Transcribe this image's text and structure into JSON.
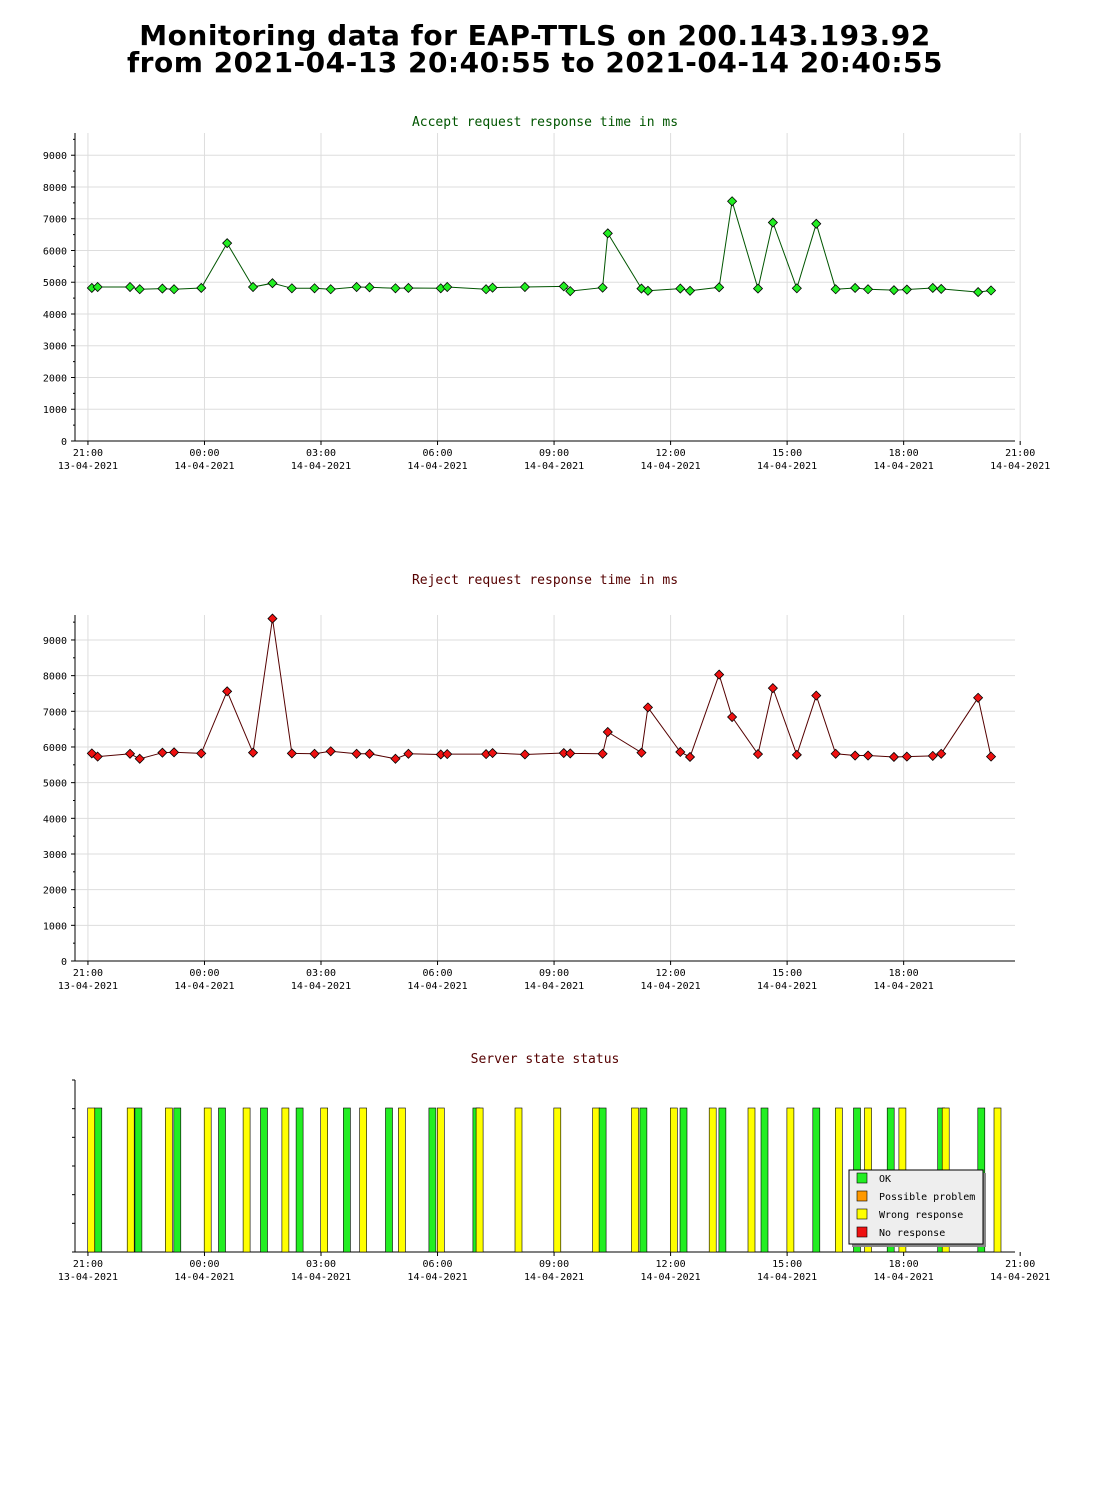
{
  "page": {
    "title_line1": "Monitoring data for EAP-TTLS on 200.143.193.92",
    "title_line2": "from 2021-04-13 20:40:55 to 2021-04-14 20:40:55"
  },
  "chart_data": [
    {
      "type": "line",
      "title": "Accept request response time in ms",
      "title_color": "#005500",
      "marker_color": "#22ee22",
      "line_color": "#005500",
      "xlabel": "",
      "ylabel": "",
      "ylim": [
        0,
        9700
      ],
      "yticks": [
        0,
        1000,
        2000,
        3000,
        4000,
        5000,
        6000,
        7000,
        8000,
        9000
      ],
      "xlim": [
        "2021-04-13 20:40",
        "2021-04-14 20:52"
      ],
      "xticks": [
        {
          "time": "2021-04-13 21:00",
          "label1": "21:00",
          "label2": "13-04-2021"
        },
        {
          "time": "2021-04-14 00:00",
          "label1": "00:00",
          "label2": "14-04-2021"
        },
        {
          "time": "2021-04-14 03:00",
          "label1": "03:00",
          "label2": "14-04-2021"
        },
        {
          "time": "2021-04-14 06:00",
          "label1": "06:00",
          "label2": "14-04-2021"
        },
        {
          "time": "2021-04-14 09:00",
          "label1": "09:00",
          "label2": "14-04-2021"
        },
        {
          "time": "2021-04-14 12:00",
          "label1": "12:00",
          "label2": "14-04-2021"
        },
        {
          "time": "2021-04-14 15:00",
          "label1": "15:00",
          "label2": "14-04-2021"
        },
        {
          "time": "2021-04-14 18:00",
          "label1": "18:00",
          "label2": "14-04-2021"
        },
        {
          "time": "2021-04-14 21:00",
          "label1": "21:00",
          "label2": "14-04-2021"
        }
      ],
      "grid": true,
      "x": [
        "2021-04-13 21:06",
        "2021-04-13 21:15",
        "2021-04-13 22:05",
        "2021-04-13 22:20",
        "2021-04-13 22:55",
        "2021-04-13 23:13",
        "2021-04-13 23:55",
        "2021-04-14 00:35",
        "2021-04-14 01:15",
        "2021-04-14 01:45",
        "2021-04-14 02:15",
        "2021-04-14 02:50",
        "2021-04-14 03:15",
        "2021-04-14 03:55",
        "2021-04-14 04:15",
        "2021-04-14 04:55",
        "2021-04-14 05:15",
        "2021-04-14 06:05",
        "2021-04-14 06:15",
        "2021-04-14 07:15",
        "2021-04-14 07:25",
        "2021-04-14 08:15",
        "2021-04-14 09:15",
        "2021-04-14 09:25",
        "2021-04-14 10:15",
        "2021-04-14 10:23",
        "2021-04-14 11:15",
        "2021-04-14 11:25",
        "2021-04-14 12:15",
        "2021-04-14 12:30",
        "2021-04-14 13:15",
        "2021-04-14 13:35",
        "2021-04-14 14:15",
        "2021-04-14 14:38",
        "2021-04-14 15:15",
        "2021-04-14 15:45",
        "2021-04-14 16:15",
        "2021-04-14 16:45",
        "2021-04-14 17:05",
        "2021-04-14 17:45",
        "2021-04-14 18:05",
        "2021-04-14 18:45",
        "2021-04-14 18:58",
        "2021-04-14 19:55",
        "2021-04-14 20:15"
      ],
      "values": [
        4820,
        4850,
        4850,
        4780,
        4800,
        4780,
        4820,
        6230,
        4850,
        4970,
        4810,
        4810,
        4780,
        4850,
        4840,
        4810,
        4820,
        4810,
        4850,
        4780,
        4830,
        4850,
        4870,
        4720,
        4830,
        6540,
        4800,
        4730,
        4800,
        4730,
        4840,
        7550,
        4800,
        6880,
        4810,
        6840,
        4780,
        4820,
        4780,
        4750,
        4770,
        4820,
        4790,
        4690,
        4740
      ]
    },
    {
      "type": "line",
      "title": "Reject request response time in ms",
      "title_color": "#550000",
      "marker_color": "#ee1111",
      "line_color": "#550000",
      "xlabel": "",
      "ylabel": "",
      "ylim": [
        0,
        9700
      ],
      "yticks": [
        0,
        1000,
        2000,
        3000,
        4000,
        5000,
        6000,
        7000,
        8000,
        9000
      ],
      "xlim": [
        "2021-04-13 20:40",
        "2021-04-14 20:52"
      ],
      "xticks": [
        {
          "time": "2021-04-13 21:00",
          "label1": "21:00",
          "label2": "13-04-2021"
        },
        {
          "time": "2021-04-14 00:00",
          "label1": "00:00",
          "label2": "14-04-2021"
        },
        {
          "time": "2021-04-14 03:00",
          "label1": "03:00",
          "label2": "14-04-2021"
        },
        {
          "time": "2021-04-14 06:00",
          "label1": "06:00",
          "label2": "14-04-2021"
        },
        {
          "time": "2021-04-14 09:00",
          "label1": "09:00",
          "label2": "14-04-2021"
        },
        {
          "time": "2021-04-14 12:00",
          "label1": "12:00",
          "label2": "14-04-2021"
        },
        {
          "time": "2021-04-14 15:00",
          "label1": "15:00",
          "label2": "14-04-2021"
        },
        {
          "time": "2021-04-14 18:00",
          "label1": "18:00",
          "label2": "14-04-2021"
        }
      ],
      "grid": true,
      "x": [
        "2021-04-13 21:06",
        "2021-04-13 21:15",
        "2021-04-13 22:05",
        "2021-04-13 22:20",
        "2021-04-13 22:55",
        "2021-04-13 23:13",
        "2021-04-13 23:55",
        "2021-04-14 00:35",
        "2021-04-14 01:15",
        "2021-04-14 01:45",
        "2021-04-14 02:15",
        "2021-04-14 02:50",
        "2021-04-14 03:15",
        "2021-04-14 03:55",
        "2021-04-14 04:15",
        "2021-04-14 04:55",
        "2021-04-14 05:15",
        "2021-04-14 06:05",
        "2021-04-14 06:15",
        "2021-04-14 07:15",
        "2021-04-14 07:25",
        "2021-04-14 08:15",
        "2021-04-14 09:15",
        "2021-04-14 09:25",
        "2021-04-14 10:15",
        "2021-04-14 10:23",
        "2021-04-14 11:15",
        "2021-04-14 11:25",
        "2021-04-14 12:15",
        "2021-04-14 12:30",
        "2021-04-14 13:15",
        "2021-04-14 13:35",
        "2021-04-14 14:15",
        "2021-04-14 14:38",
        "2021-04-14 15:15",
        "2021-04-14 15:45",
        "2021-04-14 16:15",
        "2021-04-14 16:45",
        "2021-04-14 17:05",
        "2021-04-14 17:45",
        "2021-04-14 18:05",
        "2021-04-14 18:45",
        "2021-04-14 18:58",
        "2021-04-14 19:55",
        "2021-04-14 20:15"
      ],
      "values": [
        5820,
        5730,
        5810,
        5670,
        5840,
        5850,
        5820,
        7560,
        5840,
        9600,
        5820,
        5810,
        5880,
        5810,
        5810,
        5670,
        5810,
        5790,
        5800,
        5800,
        5830,
        5790,
        5830,
        5820,
        5810,
        6420,
        5840,
        7110,
        5860,
        5720,
        8030,
        6840,
        5800,
        7650,
        5780,
        7440,
        5810,
        5760,
        5760,
        5720,
        5730,
        5750,
        5810,
        7380,
        5730
      ]
    },
    {
      "type": "bar",
      "title": "Server state status",
      "title_color": "#550000",
      "xlim": [
        "2021-04-13 20:40",
        "2021-04-14 20:52"
      ],
      "xticks": [
        {
          "time": "2021-04-13 21:00",
          "label1": "21:00",
          "label2": "13-04-2021"
        },
        {
          "time": "2021-04-14 00:00",
          "label1": "00:00",
          "label2": "14-04-2021"
        },
        {
          "time": "2021-04-14 03:00",
          "label1": "03:00",
          "label2": "14-04-2021"
        },
        {
          "time": "2021-04-14 06:00",
          "label1": "06:00",
          "label2": "14-04-2021"
        },
        {
          "time": "2021-04-14 09:00",
          "label1": "09:00",
          "label2": "14-04-2021"
        },
        {
          "time": "2021-04-14 12:00",
          "label1": "12:00",
          "label2": "14-04-2021"
        },
        {
          "time": "2021-04-14 15:00",
          "label1": "15:00",
          "label2": "14-04-2021"
        },
        {
          "time": "2021-04-14 18:00",
          "label1": "18:00",
          "label2": "14-04-2021"
        },
        {
          "time": "2021-04-14 21:00",
          "label1": "21:00",
          "label2": "14-04-2021"
        }
      ],
      "legend": [
        {
          "label": "OK",
          "color": "#22ee22"
        },
        {
          "label": "Possible problem",
          "color": "#ff9900"
        },
        {
          "label": "Wrong response",
          "color": "#ffff00"
        },
        {
          "label": "No response",
          "color": "#ee1111"
        }
      ],
      "legend_position": "bottom-right",
      "status_colors": {
        "ok": "#22ee22",
        "wrong": "#ffff00"
      },
      "events": [
        {
          "time": "2021-04-13 21:05",
          "status": "wrong"
        },
        {
          "time": "2021-04-13 21:16",
          "status": "ok"
        },
        {
          "time": "2021-04-13 22:06",
          "status": "wrong"
        },
        {
          "time": "2021-04-13 22:18",
          "status": "ok"
        },
        {
          "time": "2021-04-13 23:05",
          "status": "wrong"
        },
        {
          "time": "2021-04-13 23:18",
          "status": "ok"
        },
        {
          "time": "2021-04-14 00:05",
          "status": "wrong"
        },
        {
          "time": "2021-04-14 00:27",
          "status": "ok"
        },
        {
          "time": "2021-04-14 01:05",
          "status": "wrong"
        },
        {
          "time": "2021-04-14 01:32",
          "status": "ok"
        },
        {
          "time": "2021-04-14 02:05",
          "status": "wrong"
        },
        {
          "time": "2021-04-14 02:27",
          "status": "ok"
        },
        {
          "time": "2021-04-14 03:05",
          "status": "wrong"
        },
        {
          "time": "2021-04-14 03:40",
          "status": "ok"
        },
        {
          "time": "2021-04-14 04:05",
          "status": "wrong"
        },
        {
          "time": "2021-04-14 04:45",
          "status": "ok"
        },
        {
          "time": "2021-04-14 05:05",
          "status": "wrong"
        },
        {
          "time": "2021-04-14 05:52",
          "status": "ok"
        },
        {
          "time": "2021-04-14 06:05",
          "status": "wrong"
        },
        {
          "time": "2021-04-14 07:00",
          "status": "ok"
        },
        {
          "time": "2021-04-14 07:05",
          "status": "wrong"
        },
        {
          "time": "2021-04-14 08:05",
          "status": "wrong"
        },
        {
          "time": "2021-04-14 09:05",
          "status": "wrong"
        },
        {
          "time": "2021-04-14 10:05",
          "status": "wrong"
        },
        {
          "time": "2021-04-14 10:15",
          "status": "ok"
        },
        {
          "time": "2021-04-14 11:05",
          "status": "wrong"
        },
        {
          "time": "2021-04-14 11:18",
          "status": "ok"
        },
        {
          "time": "2021-04-14 12:05",
          "status": "wrong"
        },
        {
          "time": "2021-04-14 12:20",
          "status": "ok"
        },
        {
          "time": "2021-04-14 13:05",
          "status": "wrong"
        },
        {
          "time": "2021-04-14 13:20",
          "status": "ok"
        },
        {
          "time": "2021-04-14 14:05",
          "status": "wrong"
        },
        {
          "time": "2021-04-14 14:25",
          "status": "ok"
        },
        {
          "time": "2021-04-14 15:05",
          "status": "wrong"
        },
        {
          "time": "2021-04-14 15:45",
          "status": "ok"
        },
        {
          "time": "2021-04-14 16:20",
          "status": "wrong"
        },
        {
          "time": "2021-04-14 16:48",
          "status": "ok"
        },
        {
          "time": "2021-04-14 17:05",
          "status": "wrong"
        },
        {
          "time": "2021-04-14 17:40",
          "status": "ok"
        },
        {
          "time": "2021-04-14 17:58",
          "status": "wrong"
        },
        {
          "time": "2021-04-14 18:58",
          "status": "ok"
        },
        {
          "time": "2021-04-14 19:05",
          "status": "wrong"
        },
        {
          "time": "2021-04-14 20:00",
          "status": "ok"
        },
        {
          "time": "2021-04-14 20:25",
          "status": "wrong"
        }
      ]
    }
  ]
}
